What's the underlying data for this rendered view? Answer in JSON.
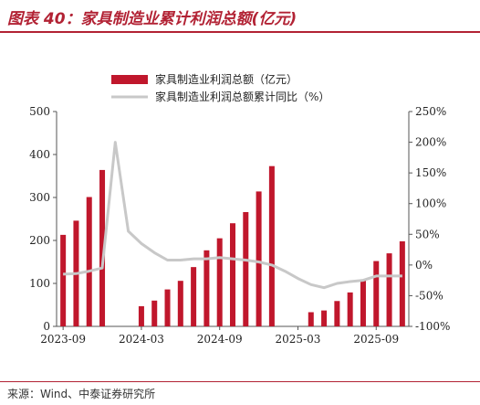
{
  "header": {
    "title": "图表 40：家具制造业累计利润总额(亿元)"
  },
  "footer": {
    "source": "来源：Wind、中泰证券研究所"
  },
  "chart_data": {
    "type": "bar",
    "title": "家具制造业累计利润总额(亿元)",
    "series": [
      {
        "name": "家具制造业利润总额（亿元）",
        "kind": "bar",
        "axis": "left",
        "color": "#c0172c",
        "values": [
          213,
          246,
          301,
          364,
          null,
          null,
          47,
          60,
          86,
          106,
          138,
          177,
          205,
          240,
          266,
          314,
          373,
          null,
          null,
          33,
          37,
          59,
          79,
          107,
          152,
          170,
          198
        ]
      },
      {
        "name": "家具制造业利润总额累计同比（%）",
        "kind": "line",
        "axis": "right",
        "color": "#c8c8c8",
        "values": [
          -15,
          -14,
          -10,
          -5,
          200,
          55,
          35,
          20,
          8,
          8,
          10,
          10,
          12,
          10,
          8,
          5,
          0,
          -10,
          -22,
          -32,
          -37,
          -30,
          -27,
          -25,
          -18,
          -18,
          -18
        ]
      }
    ],
    "x_tick_labels": [
      "2023-09",
      "2024-03",
      "2024-09",
      "2025-03",
      "2025-09"
    ],
    "x_tick_indices": [
      0,
      6,
      12,
      18,
      24
    ],
    "y_left": {
      "min": 0,
      "max": 500,
      "ticks": [
        0,
        100,
        200,
        300,
        400,
        500
      ],
      "tick_labels": [
        "0",
        "100",
        "200",
        "300",
        "400",
        "500"
      ]
    },
    "y_right": {
      "min": -100,
      "max": 250,
      "ticks": [
        -100,
        -50,
        0,
        50,
        100,
        150,
        200,
        250
      ],
      "tick_labels": [
        "-100%",
        "-50%",
        "0%",
        "50%",
        "100%",
        "150%",
        "200%",
        "250%"
      ]
    },
    "legend": {
      "position": "top-left"
    },
    "grid": false
  }
}
